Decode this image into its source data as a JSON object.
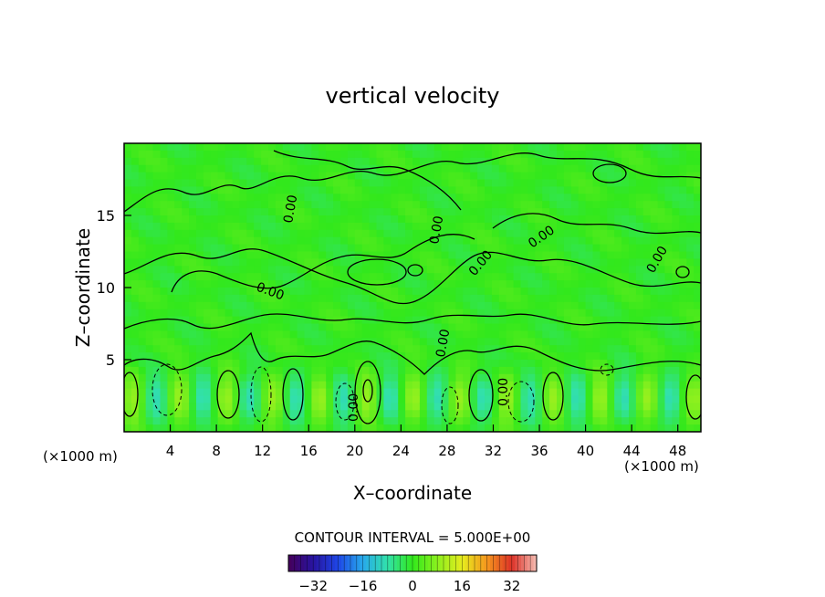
{
  "chart_data": {
    "type": "heatmap",
    "title": "vertical velocity",
    "xlabel": "X–coordinate",
    "ylabel": "Z–coordinate",
    "x_unit_left": "(×1000 m)",
    "x_unit_right": "(×1000 m)",
    "xlim": [
      0,
      50
    ],
    "ylim": [
      0,
      20
    ],
    "x_ticks": [
      4,
      8,
      12,
      16,
      20,
      24,
      28,
      32,
      36,
      40,
      44,
      48
    ],
    "y_ticks": [
      5,
      10,
      15
    ],
    "contour_interval_text": "CONTOUR INTERVAL = 5.000E+00",
    "contour_labels": [
      "0.00",
      "0.00",
      "0.00",
      "0.00",
      "0.00",
      "0.00",
      "0.00",
      "0.00",
      "0.00"
    ],
    "colorbar": {
      "range": [
        -40,
        40
      ],
      "tick_values": [
        -32,
        -16,
        0,
        16,
        32
      ],
      "tick_labels": [
        "−32",
        "−16",
        "0",
        "16",
        "32"
      ]
    },
    "colors": {
      "field_base": "#33e81c",
      "contour": "#000000"
    }
  }
}
